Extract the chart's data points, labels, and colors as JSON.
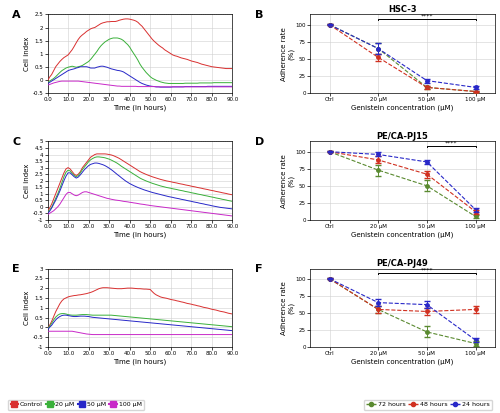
{
  "line_colors_cell": {
    "control": "#d93030",
    "20uM": "#3ab03a",
    "50uM": "#2828c8",
    "100uM": "#c828c8"
  },
  "adh_colors": {
    "72h": "#5a8a30",
    "48h": "#d03020",
    "24h": "#2828c8"
  },
  "panelA_time": [
    0,
    1,
    2,
    3,
    4,
    5,
    6,
    7,
    8,
    9,
    10,
    11,
    12,
    13,
    14,
    15,
    16,
    17,
    18,
    19,
    20,
    21,
    22,
    23,
    24,
    25,
    26,
    27,
    28,
    29,
    30,
    31,
    32,
    33,
    34,
    35,
    36,
    37,
    38,
    39,
    40,
    41,
    42,
    43,
    44,
    45,
    46,
    47,
    48,
    49,
    50,
    51,
    52,
    53,
    54,
    55,
    56,
    57,
    58,
    59,
    60,
    61,
    62,
    63,
    64,
    65,
    66,
    67,
    68,
    69,
    70,
    71,
    72,
    73,
    74,
    75,
    76,
    77,
    78,
    79,
    80,
    81,
    82,
    83,
    84,
    85,
    86,
    87,
    88,
    89,
    90
  ],
  "panelA_ctrl": [
    -0.05,
    0.1,
    0.2,
    0.35,
    0.5,
    0.6,
    0.7,
    0.78,
    0.85,
    0.9,
    0.95,
    1.05,
    1.15,
    1.28,
    1.42,
    1.55,
    1.65,
    1.72,
    1.78,
    1.85,
    1.9,
    1.95,
    1.98,
    2.0,
    2.05,
    2.1,
    2.15,
    2.18,
    2.2,
    2.22,
    2.22,
    2.23,
    2.23,
    2.23,
    2.25,
    2.28,
    2.3,
    2.32,
    2.33,
    2.33,
    2.32,
    2.3,
    2.28,
    2.25,
    2.2,
    2.12,
    2.05,
    1.95,
    1.85,
    1.75,
    1.65,
    1.55,
    1.47,
    1.4,
    1.33,
    1.27,
    1.22,
    1.15,
    1.1,
    1.05,
    1.0,
    0.95,
    0.92,
    0.9,
    0.87,
    0.84,
    0.82,
    0.8,
    0.78,
    0.75,
    0.72,
    0.7,
    0.68,
    0.66,
    0.63,
    0.6,
    0.58,
    0.56,
    0.54,
    0.52,
    0.5,
    0.49,
    0.48,
    0.47,
    0.46,
    0.45,
    0.44,
    0.43,
    0.43,
    0.43,
    0.43
  ],
  "panelA_20uM": [
    -0.1,
    -0.05,
    0.0,
    0.05,
    0.12,
    0.2,
    0.28,
    0.35,
    0.4,
    0.45,
    0.48,
    0.5,
    0.52,
    0.5,
    0.48,
    0.5,
    0.52,
    0.55,
    0.6,
    0.65,
    0.7,
    0.78,
    0.88,
    0.98,
    1.08,
    1.2,
    1.3,
    1.38,
    1.45,
    1.5,
    1.55,
    1.58,
    1.6,
    1.6,
    1.6,
    1.58,
    1.55,
    1.5,
    1.42,
    1.35,
    1.25,
    1.12,
    1.0,
    0.88,
    0.75,
    0.6,
    0.48,
    0.38,
    0.28,
    0.2,
    0.12,
    0.06,
    0.02,
    -0.02,
    -0.05,
    -0.08,
    -0.1,
    -0.12,
    -0.13,
    -0.14,
    -0.14,
    -0.14,
    -0.14,
    -0.14,
    -0.14,
    -0.14,
    -0.14,
    -0.13,
    -0.13,
    -0.13,
    -0.13,
    -0.13,
    -0.13,
    -0.13,
    -0.12,
    -0.12,
    -0.12,
    -0.12,
    -0.12,
    -0.12,
    -0.12,
    -0.11,
    -0.11,
    -0.11,
    -0.11,
    -0.11,
    -0.11,
    -0.11,
    -0.11,
    -0.11,
    -0.11
  ],
  "panelA_50uM": [
    -0.15,
    -0.1,
    -0.05,
    0.0,
    0.05,
    0.1,
    0.15,
    0.2,
    0.25,
    0.3,
    0.35,
    0.38,
    0.4,
    0.42,
    0.45,
    0.47,
    0.5,
    0.5,
    0.5,
    0.5,
    0.48,
    0.45,
    0.45,
    0.45,
    0.48,
    0.5,
    0.52,
    0.52,
    0.5,
    0.48,
    0.45,
    0.42,
    0.4,
    0.38,
    0.36,
    0.35,
    0.33,
    0.3,
    0.25,
    0.2,
    0.15,
    0.1,
    0.05,
    0.0,
    -0.05,
    -0.1,
    -0.14,
    -0.17,
    -0.2,
    -0.22,
    -0.24,
    -0.25,
    -0.26,
    -0.27,
    -0.27,
    -0.28,
    -0.28,
    -0.28,
    -0.28,
    -0.28,
    -0.28,
    -0.27,
    -0.27,
    -0.27,
    -0.27,
    -0.27,
    -0.27,
    -0.26,
    -0.26,
    -0.26,
    -0.26,
    -0.26,
    -0.26,
    -0.26,
    -0.26,
    -0.26,
    -0.26,
    -0.26,
    -0.25,
    -0.25,
    -0.25,
    -0.25,
    -0.25,
    -0.25,
    -0.25,
    -0.25,
    -0.25,
    -0.25,
    -0.25,
    -0.25,
    -0.25
  ],
  "panelA_100uM": [
    -0.2,
    -0.18,
    -0.15,
    -0.12,
    -0.1,
    -0.08,
    -0.06,
    -0.05,
    -0.05,
    -0.05,
    -0.05,
    -0.05,
    -0.05,
    -0.05,
    -0.05,
    -0.05,
    -0.06,
    -0.07,
    -0.08,
    -0.09,
    -0.1,
    -0.11,
    -0.12,
    -0.13,
    -0.14,
    -0.15,
    -0.16,
    -0.17,
    -0.18,
    -0.19,
    -0.2,
    -0.21,
    -0.22,
    -0.23,
    -0.24,
    -0.24,
    -0.25,
    -0.25,
    -0.25,
    -0.25,
    -0.25,
    -0.25,
    -0.25,
    -0.25,
    -0.26,
    -0.26,
    -0.26,
    -0.26,
    -0.26,
    -0.26,
    -0.26,
    -0.26,
    -0.26,
    -0.27,
    -0.27,
    -0.27,
    -0.27,
    -0.27,
    -0.27,
    -0.27,
    -0.27,
    -0.27,
    -0.27,
    -0.27,
    -0.27,
    -0.27,
    -0.27,
    -0.27,
    -0.27,
    -0.27,
    -0.27,
    -0.27,
    -0.27,
    -0.27,
    -0.27,
    -0.27,
    -0.27,
    -0.27,
    -0.27,
    -0.27,
    -0.27,
    -0.27,
    -0.27,
    -0.27,
    -0.27,
    -0.27,
    -0.27,
    -0.27,
    -0.27,
    -0.27,
    -0.27
  ],
  "panelC_time": [
    0,
    1,
    2,
    3,
    4,
    5,
    6,
    7,
    8,
    9,
    10,
    11,
    12,
    13,
    14,
    15,
    16,
    17,
    18,
    19,
    20,
    21,
    22,
    23,
    24,
    25,
    26,
    27,
    28,
    29,
    30,
    31,
    32,
    33,
    34,
    35,
    36,
    37,
    38,
    39,
    40,
    41,
    42,
    43,
    44,
    45,
    46,
    47,
    48,
    49,
    50,
    51,
    52,
    53,
    54,
    55,
    56,
    57,
    58,
    59,
    60,
    61,
    62,
    63,
    64,
    65,
    66,
    67,
    68,
    69,
    70,
    71,
    72,
    73,
    74,
    75,
    76,
    77,
    78,
    79,
    80,
    81,
    82,
    83,
    84,
    85,
    86,
    87,
    88,
    89,
    90
  ],
  "panelC_ctrl": [
    -0.3,
    -0.1,
    0.2,
    0.6,
    1.0,
    1.4,
    1.8,
    2.2,
    2.6,
    2.9,
    3.0,
    2.9,
    2.7,
    2.5,
    2.4,
    2.5,
    2.7,
    3.0,
    3.2,
    3.4,
    3.6,
    3.8,
    3.9,
    4.0,
    4.05,
    4.05,
    4.05,
    4.05,
    4.05,
    4.03,
    4.0,
    3.97,
    3.92,
    3.85,
    3.78,
    3.7,
    3.6,
    3.5,
    3.4,
    3.3,
    3.2,
    3.1,
    3.0,
    2.9,
    2.8,
    2.7,
    2.62,
    2.55,
    2.48,
    2.42,
    2.36,
    2.3,
    2.25,
    2.2,
    2.15,
    2.1,
    2.06,
    2.02,
    1.98,
    1.95,
    1.92,
    1.88,
    1.85,
    1.82,
    1.78,
    1.75,
    1.72,
    1.68,
    1.65,
    1.62,
    1.58,
    1.55,
    1.52,
    1.48,
    1.45,
    1.42,
    1.38,
    1.35,
    1.32,
    1.28,
    1.25,
    1.22,
    1.18,
    1.15,
    1.12,
    1.08,
    1.05,
    1.02,
    0.98,
    0.95,
    0.92
  ],
  "panelC_20uM": [
    -0.4,
    -0.25,
    -0.05,
    0.3,
    0.65,
    1.0,
    1.4,
    1.85,
    2.3,
    2.65,
    2.8,
    2.75,
    2.55,
    2.4,
    2.3,
    2.4,
    2.6,
    2.85,
    3.05,
    3.25,
    3.45,
    3.6,
    3.7,
    3.78,
    3.82,
    3.82,
    3.8,
    3.78,
    3.75,
    3.7,
    3.65,
    3.58,
    3.5,
    3.42,
    3.33,
    3.22,
    3.1,
    3.0,
    2.9,
    2.8,
    2.7,
    2.6,
    2.5,
    2.4,
    2.3,
    2.2,
    2.12,
    2.05,
    1.98,
    1.92,
    1.86,
    1.8,
    1.75,
    1.7,
    1.65,
    1.6,
    1.56,
    1.52,
    1.48,
    1.45,
    1.42,
    1.38,
    1.35,
    1.32,
    1.28,
    1.25,
    1.22,
    1.18,
    1.15,
    1.12,
    1.08,
    1.05,
    1.02,
    0.98,
    0.95,
    0.92,
    0.88,
    0.85,
    0.82,
    0.78,
    0.75,
    0.72,
    0.68,
    0.65,
    0.62,
    0.58,
    0.55,
    0.52,
    0.48,
    0.45,
    0.42
  ],
  "panelC_50uM": [
    -0.5,
    -0.35,
    -0.1,
    0.2,
    0.5,
    0.85,
    1.2,
    1.6,
    2.0,
    2.35,
    2.6,
    2.6,
    2.45,
    2.3,
    2.2,
    2.28,
    2.45,
    2.65,
    2.85,
    3.0,
    3.15,
    3.25,
    3.3,
    3.35,
    3.35,
    3.32,
    3.27,
    3.22,
    3.15,
    3.06,
    2.96,
    2.85,
    2.73,
    2.6,
    2.47,
    2.35,
    2.22,
    2.1,
    1.98,
    1.88,
    1.78,
    1.7,
    1.62,
    1.55,
    1.48,
    1.42,
    1.36,
    1.3,
    1.25,
    1.2,
    1.15,
    1.1,
    1.06,
    1.02,
    0.98,
    0.94,
    0.9,
    0.86,
    0.82,
    0.78,
    0.75,
    0.72,
    0.68,
    0.65,
    0.62,
    0.58,
    0.55,
    0.52,
    0.48,
    0.45,
    0.42,
    0.38,
    0.35,
    0.32,
    0.28,
    0.25,
    0.22,
    0.18,
    0.15,
    0.12,
    0.08,
    0.05,
    0.02,
    -0.01,
    -0.04,
    -0.06,
    -0.08,
    -0.1,
    -0.12,
    -0.14,
    -0.16
  ],
  "panelC_100uM": [
    -0.6,
    -0.5,
    -0.4,
    -0.3,
    -0.15,
    0.0,
    0.2,
    0.45,
    0.7,
    0.95,
    1.1,
    1.1,
    1.0,
    0.9,
    0.85,
    0.9,
    1.0,
    1.1,
    1.15,
    1.15,
    1.1,
    1.05,
    1.0,
    0.95,
    0.9,
    0.85,
    0.8,
    0.75,
    0.7,
    0.65,
    0.62,
    0.58,
    0.55,
    0.52,
    0.5,
    0.48,
    0.45,
    0.42,
    0.4,
    0.38,
    0.35,
    0.33,
    0.3,
    0.28,
    0.25,
    0.22,
    0.2,
    0.18,
    0.15,
    0.13,
    0.1,
    0.08,
    0.06,
    0.04,
    0.02,
    0.0,
    -0.02,
    -0.04,
    -0.06,
    -0.08,
    -0.1,
    -0.12,
    -0.14,
    -0.16,
    -0.18,
    -0.2,
    -0.22,
    -0.24,
    -0.26,
    -0.28,
    -0.3,
    -0.32,
    -0.34,
    -0.36,
    -0.38,
    -0.4,
    -0.42,
    -0.44,
    -0.46,
    -0.48,
    -0.5,
    -0.52,
    -0.54,
    -0.56,
    -0.58,
    -0.6,
    -0.62,
    -0.64,
    -0.66,
    -0.68,
    -0.7
  ],
  "panelE_time": [
    0,
    1,
    2,
    3,
    4,
    5,
    6,
    7,
    8,
    9,
    10,
    11,
    12,
    13,
    14,
    15,
    16,
    17,
    18,
    19,
    20,
    21,
    22,
    23,
    24,
    25,
    26,
    27,
    28,
    29,
    30,
    31,
    32,
    33,
    34,
    35,
    36,
    37,
    38,
    39,
    40,
    41,
    42,
    43,
    44,
    45,
    46,
    47,
    48,
    49,
    50,
    51,
    52,
    53,
    54,
    55,
    56,
    57,
    58,
    59,
    60,
    61,
    62,
    63,
    64,
    65,
    66,
    67,
    68,
    69,
    70,
    71,
    72,
    73,
    74,
    75,
    76,
    77,
    78,
    79,
    80,
    81,
    82,
    83,
    84,
    85,
    86,
    87,
    88,
    89,
    90
  ],
  "panelE_ctrl": [
    -0.1,
    0.1,
    0.3,
    0.55,
    0.8,
    1.0,
    1.2,
    1.35,
    1.45,
    1.5,
    1.55,
    1.58,
    1.6,
    1.62,
    1.63,
    1.65,
    1.66,
    1.68,
    1.7,
    1.72,
    1.75,
    1.78,
    1.82,
    1.87,
    1.92,
    1.97,
    2.0,
    2.02,
    2.02,
    2.02,
    2.01,
    2.0,
    1.99,
    1.98,
    1.97,
    1.97,
    1.97,
    1.98,
    1.99,
    2.0,
    2.0,
    2.0,
    1.99,
    1.98,
    1.97,
    1.97,
    1.96,
    1.95,
    1.95,
    1.94,
    1.93,
    1.82,
    1.72,
    1.65,
    1.6,
    1.55,
    1.52,
    1.5,
    1.48,
    1.45,
    1.42,
    1.4,
    1.38,
    1.35,
    1.33,
    1.3,
    1.28,
    1.25,
    1.22,
    1.2,
    1.18,
    1.15,
    1.13,
    1.1,
    1.08,
    1.05,
    1.02,
    1.0,
    0.98,
    0.95,
    0.92,
    0.9,
    0.88,
    0.85,
    0.82,
    0.8,
    0.78,
    0.75,
    0.72,
    0.7,
    0.68
  ],
  "panelE_20uM": [
    -0.1,
    0.05,
    0.2,
    0.38,
    0.52,
    0.62,
    0.68,
    0.7,
    0.7,
    0.68,
    0.65,
    0.63,
    0.62,
    0.62,
    0.62,
    0.63,
    0.64,
    0.65,
    0.65,
    0.65,
    0.64,
    0.63,
    0.62,
    0.62,
    0.62,
    0.62,
    0.62,
    0.62,
    0.62,
    0.62,
    0.62,
    0.62,
    0.61,
    0.6,
    0.59,
    0.58,
    0.57,
    0.56,
    0.55,
    0.54,
    0.53,
    0.52,
    0.51,
    0.5,
    0.49,
    0.48,
    0.47,
    0.46,
    0.45,
    0.44,
    0.43,
    0.42,
    0.41,
    0.4,
    0.39,
    0.38,
    0.37,
    0.36,
    0.35,
    0.34,
    0.33,
    0.32,
    0.31,
    0.3,
    0.29,
    0.28,
    0.27,
    0.26,
    0.25,
    0.24,
    0.23,
    0.22,
    0.21,
    0.2,
    0.19,
    0.18,
    0.17,
    0.16,
    0.15,
    0.14,
    0.13,
    0.12,
    0.11,
    0.1,
    0.09,
    0.08,
    0.07,
    0.06,
    0.05,
    0.04,
    0.03
  ],
  "panelE_50uM": [
    -0.15,
    0.0,
    0.1,
    0.25,
    0.38,
    0.48,
    0.55,
    0.6,
    0.62,
    0.62,
    0.6,
    0.58,
    0.56,
    0.55,
    0.55,
    0.56,
    0.57,
    0.57,
    0.57,
    0.56,
    0.55,
    0.53,
    0.51,
    0.5,
    0.49,
    0.48,
    0.47,
    0.46,
    0.45,
    0.44,
    0.43,
    0.42,
    0.41,
    0.4,
    0.39,
    0.38,
    0.37,
    0.36,
    0.35,
    0.34,
    0.33,
    0.32,
    0.31,
    0.3,
    0.29,
    0.28,
    0.27,
    0.26,
    0.25,
    0.24,
    0.23,
    0.22,
    0.21,
    0.2,
    0.19,
    0.18,
    0.17,
    0.16,
    0.15,
    0.14,
    0.13,
    0.12,
    0.11,
    0.1,
    0.09,
    0.08,
    0.07,
    0.06,
    0.05,
    0.04,
    0.03,
    0.02,
    0.01,
    0.0,
    -0.01,
    -0.02,
    -0.03,
    -0.04,
    -0.05,
    -0.06,
    -0.07,
    -0.08,
    -0.09,
    -0.1,
    -0.11,
    -0.12,
    -0.13,
    -0.14,
    -0.15,
    -0.16,
    -0.17
  ],
  "panelE_100uM": [
    -0.2,
    -0.2,
    -0.2,
    -0.2,
    -0.2,
    -0.2,
    -0.2,
    -0.2,
    -0.2,
    -0.2,
    -0.2,
    -0.2,
    -0.2,
    -0.22,
    -0.24,
    -0.26,
    -0.28,
    -0.3,
    -0.32,
    -0.34,
    -0.35,
    -0.36,
    -0.37,
    -0.37,
    -0.37,
    -0.37,
    -0.37,
    -0.37,
    -0.37,
    -0.37,
    -0.37,
    -0.37,
    -0.37,
    -0.37,
    -0.37,
    -0.37,
    -0.37,
    -0.37,
    -0.37,
    -0.37,
    -0.37,
    -0.37,
    -0.37,
    -0.37,
    -0.37,
    -0.37,
    -0.37,
    -0.37,
    -0.37,
    -0.37,
    -0.37,
    -0.37,
    -0.37,
    -0.37,
    -0.37,
    -0.37,
    -0.37,
    -0.37,
    -0.37,
    -0.37,
    -0.37,
    -0.37,
    -0.37,
    -0.37,
    -0.37,
    -0.37,
    -0.37,
    -0.37,
    -0.37,
    -0.37,
    -0.37,
    -0.37,
    -0.37,
    -0.37,
    -0.37,
    -0.37,
    -0.37,
    -0.37,
    -0.37,
    -0.37,
    -0.37,
    -0.37,
    -0.37,
    -0.37,
    -0.37,
    -0.37,
    -0.37,
    -0.37,
    -0.37,
    -0.37,
    -0.37
  ],
  "adh_xticklabels": [
    "Ctrl",
    "20 μM",
    "50 μM",
    "100 μM"
  ],
  "adh_xticks": [
    0,
    1,
    2,
    3
  ],
  "adh_ylabel": "Adherence rate\n(%)",
  "adh_xlabel": "Genistein concentration (μM)",
  "hsc3_72h": [
    100,
    65,
    8,
    2
  ],
  "hsc3_48h": [
    100,
    52,
    8,
    2
  ],
  "hsc3_24h": [
    100,
    65,
    18,
    8
  ],
  "hsc3_72h_err": [
    1,
    8,
    2,
    1
  ],
  "hsc3_48h_err": [
    1,
    5,
    2,
    1
  ],
  "hsc3_24h_err": [
    1,
    8,
    3,
    2
  ],
  "pj15_72h": [
    100,
    73,
    50,
    5
  ],
  "pj15_48h": [
    100,
    88,
    67,
    12
  ],
  "pj15_24h": [
    100,
    96,
    85,
    15
  ],
  "pj15_72h_err": [
    1,
    8,
    8,
    2
  ],
  "pj15_48h_err": [
    1,
    5,
    5,
    3
  ],
  "pj15_24h_err": [
    1,
    3,
    3,
    3
  ],
  "pj49_72h": [
    100,
    55,
    22,
    5
  ],
  "pj49_48h": [
    100,
    55,
    52,
    55
  ],
  "pj49_24h": [
    100,
    65,
    62,
    10
  ],
  "pj49_72h_err": [
    1,
    5,
    8,
    3
  ],
  "pj49_48h_err": [
    1,
    5,
    5,
    5
  ],
  "pj49_24h_err": [
    1,
    5,
    5,
    3
  ],
  "legend_bottom_labels": [
    "Control",
    "20 μM",
    "50 μM",
    "100 μM"
  ],
  "legend_bottom_colors": [
    "#d93030",
    "#3ab03a",
    "#2828c8",
    "#c828c8"
  ],
  "legend_right_labels": [
    "72 hours",
    "48 hours",
    "24 hours"
  ],
  "legend_right_colors": [
    "#5a8a30",
    "#d03020",
    "#2828c8"
  ],
  "background": "#ffffff",
  "grid_color": "#d0d0d0",
  "panelA_ylim": [
    -0.5,
    2.5
  ],
  "panelA_yticks": [
    -0.5,
    0.0,
    0.5,
    1.0,
    1.5,
    2.0,
    2.5
  ],
  "panelC_ylim": [
    -1.0,
    5.0
  ],
  "panelC_yticks": [
    -1.0,
    -0.5,
    0.0,
    0.5,
    1.0,
    1.5,
    2.0,
    2.5,
    3.0,
    3.5,
    4.0,
    4.5,
    5.0
  ],
  "panelE_ylim": [
    -1.0,
    3.0
  ],
  "panelE_yticks": [
    -1.0,
    -0.5,
    0.0,
    0.5,
    1.0,
    1.5,
    2.0,
    2.5,
    3.0
  ]
}
